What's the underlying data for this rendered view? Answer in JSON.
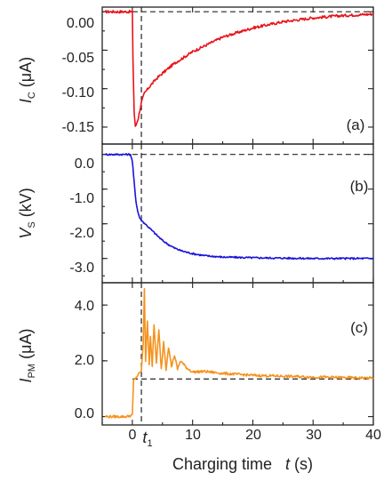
{
  "chart_data": [
    {
      "panel": "(a)",
      "type": "line",
      "ylabel_main": "I",
      "ylabel_sub": "C",
      "ylabel_unit": " (μA)",
      "ylim": [
        -0.172,
        0.006
      ],
      "yticks": [
        0.0,
        -0.05,
        -0.1,
        -0.15
      ],
      "ytick_labels": [
        "0.00",
        "-0.05",
        "-0.10",
        "-0.15"
      ],
      "color": "#e8121a",
      "series": [
        {
          "x": [
            -4.5,
            -2,
            0,
            0.1,
            0.3,
            0.5,
            1,
            1.5,
            2,
            3,
            4,
            5,
            7,
            10,
            15,
            20,
            25,
            30,
            35,
            40
          ],
          "y": [
            0.0,
            0.0,
            0.0,
            -0.06,
            -0.13,
            -0.15,
            -0.138,
            -0.118,
            -0.106,
            -0.096,
            -0.087,
            -0.08,
            -0.067,
            -0.052,
            -0.033,
            -0.021,
            -0.013,
            -0.008,
            -0.005,
            -0.003
          ]
        }
      ]
    },
    {
      "panel": "(b)",
      "type": "line",
      "ylabel_main": "V",
      "ylabel_sub": "S",
      "ylabel_unit": " (kV)",
      "ylim": [
        -3.7,
        0.3
      ],
      "yticks": [
        0.0,
        -1.0,
        -2.0,
        -3.0
      ],
      "ytick_labels": [
        "0.0",
        "-1.0",
        "-2.0",
        "-3.0"
      ],
      "color": "#1a14d8",
      "series": [
        {
          "x": [
            -4.5,
            -2,
            -0.3,
            0,
            0.3,
            0.6,
            0.9,
            1.2,
            1.5,
            2,
            3,
            4,
            5,
            6,
            7,
            8,
            9,
            10,
            12,
            15,
            20,
            25,
            30,
            35,
            40
          ],
          "y": [
            0.0,
            0.0,
            0.0,
            -0.2,
            -0.8,
            -1.35,
            -1.65,
            -1.82,
            -1.9,
            -1.98,
            -2.15,
            -2.32,
            -2.48,
            -2.6,
            -2.7,
            -2.77,
            -2.82,
            -2.86,
            -2.92,
            -2.96,
            -2.98,
            -2.99,
            -3.0,
            -3.0,
            -3.0
          ]
        }
      ]
    },
    {
      "panel": "(c)",
      "type": "line",
      "ylabel_main": "I",
      "ylabel_sub": "PM",
      "ylabel_unit": " (μA)",
      "ylim": [
        -0.3,
        4.8
      ],
      "yticks": [
        0.0,
        2.0,
        4.0
      ],
      "ytick_labels": [
        "0.0",
        "2.0",
        "4.0"
      ],
      "xlabel": "Charging time",
      "xlabel_var": "t",
      "xlabel_unit": " (s)",
      "xlim": [
        -5,
        40
      ],
      "xticks": [
        0,
        10,
        20,
        30,
        40
      ],
      "xtick_labels": [
        "0",
        "10",
        "20",
        "30",
        "40"
      ],
      "marker_label": "t",
      "marker_sub": "1",
      "marker_x": 1.5,
      "baseline_y": 1.35,
      "color": "#f5921e",
      "series": [
        {
          "x": [
            -4.5,
            -1,
            0,
            0.2,
            0.6,
            1.0,
            1.5,
            1.8,
            2.0,
            2.2,
            2.5,
            2.8,
            3.0,
            3.3,
            3.6,
            4.0,
            4.4,
            4.8,
            5.2,
            5.6,
            6.0,
            6.5,
            7.0,
            7.5,
            8.0,
            9.0,
            10,
            12,
            15,
            20,
            25,
            30,
            35,
            40
          ],
          "y": [
            0.0,
            0.0,
            0.05,
            1.3,
            1.4,
            1.5,
            1.65,
            2.6,
            4.6,
            2.0,
            3.4,
            1.9,
            2.9,
            1.8,
            3.3,
            1.9,
            3.1,
            1.7,
            2.7,
            1.7,
            2.5,
            1.8,
            2.2,
            1.7,
            2.0,
            1.75,
            1.6,
            1.62,
            1.55,
            1.48,
            1.45,
            1.42,
            1.4,
            1.38
          ]
        }
      ]
    }
  ]
}
